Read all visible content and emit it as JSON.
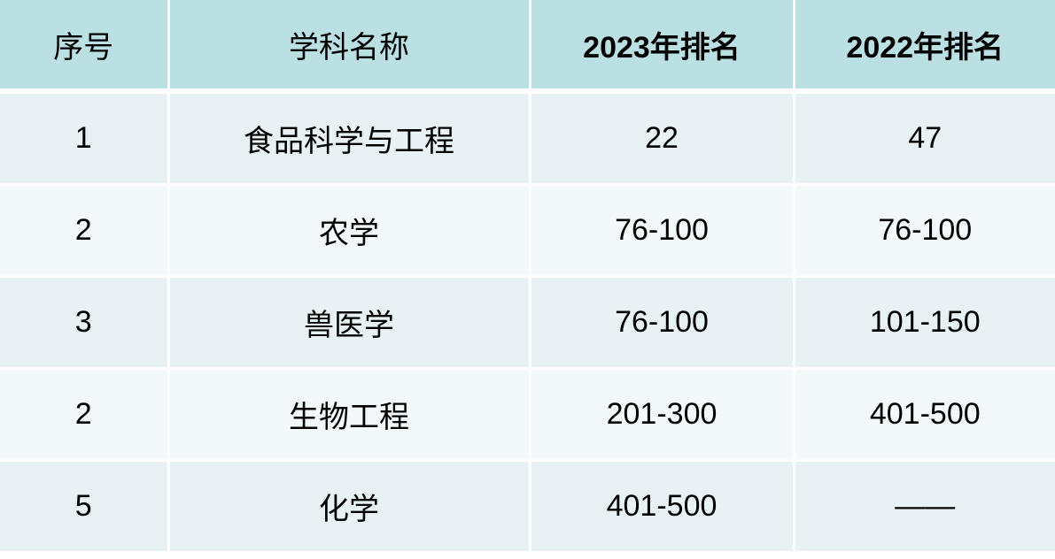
{
  "headers": [
    "序号",
    "学科名称",
    "2023年排名",
    "2022年排名"
  ],
  "rows": [
    [
      "1",
      "食品科学与工程",
      "22",
      "47"
    ],
    [
      "2",
      "农学",
      "76-100",
      "76-100"
    ],
    [
      "3",
      "兽医学",
      "76-100",
      "101-150"
    ],
    [
      "2",
      "生物工程",
      "201-300",
      "401-500"
    ],
    [
      "5",
      "化学",
      "401-500",
      "——"
    ]
  ]
}
